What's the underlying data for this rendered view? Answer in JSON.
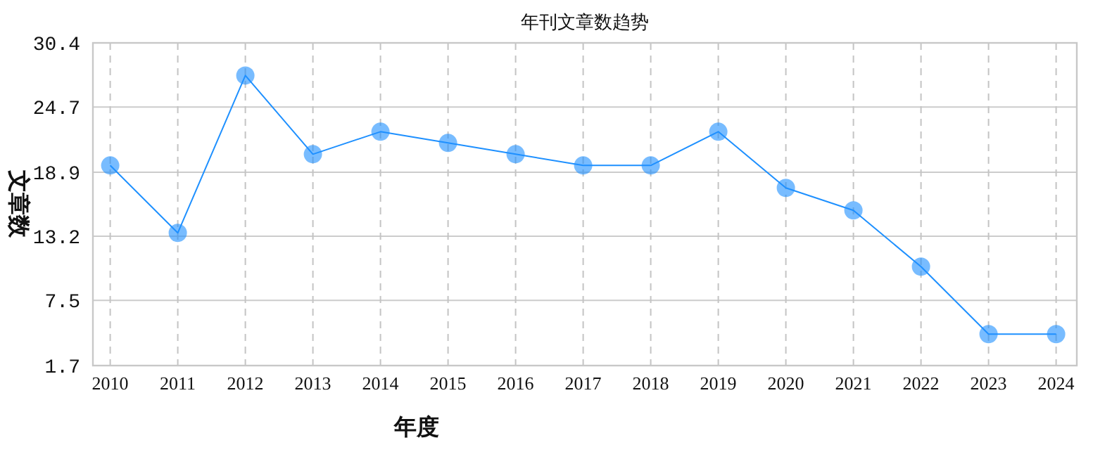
{
  "chart_data": {
    "type": "line",
    "title": "年刊文章数趋势",
    "xlabel": "年度",
    "ylabel": "文章数",
    "categories": [
      "2010",
      "2011",
      "2012",
      "2013",
      "2014",
      "2015",
      "2016",
      "2017",
      "2018",
      "2019",
      "2020",
      "2021",
      "2022",
      "2023",
      "2024"
    ],
    "series": [
      {
        "color": "#1e90ff",
        "values": [
          19.5,
          13.5,
          27.5,
          20.5,
          22.5,
          21.5,
          20.5,
          19.5,
          19.5,
          22.5,
          17.5,
          15.5,
          10.5,
          4.5,
          4.5
        ]
      }
    ],
    "ylim": [
      1.7,
      30.4
    ],
    "yticks": [
      1.7,
      7.5,
      13.2,
      18.9,
      24.7,
      30.4
    ],
    "grid": true,
    "marker": "circle",
    "line_style": "solid"
  }
}
